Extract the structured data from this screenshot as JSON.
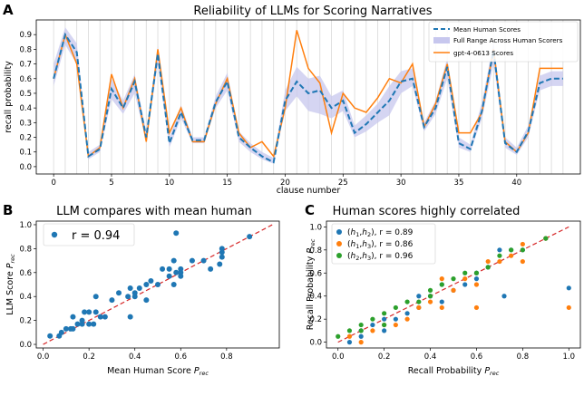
{
  "colors": {
    "human": "#1f77b4",
    "gpt": "#ff7f0e",
    "band": "#c7c7ee",
    "green": "#2ca02c",
    "diag": "#d62728"
  },
  "chart_data": [
    {
      "panel": "A",
      "type": "line",
      "title": "Reliability of LLMs for Scoring Narratives",
      "xlabel": "clause number",
      "ylabel": "recall probability",
      "xlim": [
        -1.5,
        45.5
      ],
      "ylim": [
        -0.05,
        1.0
      ],
      "xticks": [
        0,
        5,
        10,
        15,
        20,
        25,
        30,
        35,
        40
      ],
      "yticks": [
        0.0,
        0.1,
        0.2,
        0.3,
        0.4,
        0.5,
        0.6,
        0.7,
        0.8,
        0.9
      ],
      "x": [
        0,
        1,
        2,
        3,
        4,
        5,
        6,
        7,
        8,
        9,
        10,
        11,
        12,
        13,
        14,
        15,
        16,
        17,
        18,
        19,
        20,
        21,
        22,
        23,
        24,
        25,
        26,
        27,
        28,
        29,
        30,
        31,
        32,
        33,
        34,
        35,
        36,
        37,
        38,
        39,
        40,
        41,
        42,
        43,
        44
      ],
      "series": [
        {
          "name": "Mean Human Scores",
          "style": "dashed",
          "values": [
            0.6,
            0.9,
            0.78,
            0.07,
            0.12,
            0.53,
            0.4,
            0.58,
            0.2,
            0.77,
            0.16,
            0.37,
            0.18,
            0.18,
            0.44,
            0.58,
            0.2,
            0.13,
            0.07,
            0.03,
            0.45,
            0.58,
            0.5,
            0.52,
            0.4,
            0.45,
            0.23,
            0.29,
            0.37,
            0.45,
            0.58,
            0.6,
            0.27,
            0.4,
            0.68,
            0.16,
            0.12,
            0.38,
            0.79,
            0.16,
            0.1,
            0.24,
            0.57,
            0.6,
            0.6
          ]
        },
        {
          "name": "Full Range Across Human Scorers",
          "style": "band",
          "lower": [
            0.55,
            0.83,
            0.7,
            0.05,
            0.1,
            0.46,
            0.36,
            0.5,
            0.17,
            0.7,
            0.13,
            0.33,
            0.16,
            0.16,
            0.4,
            0.52,
            0.17,
            0.1,
            0.05,
            0.02,
            0.38,
            0.48,
            0.38,
            0.36,
            0.33,
            0.38,
            0.2,
            0.24,
            0.3,
            0.35,
            0.5,
            0.55,
            0.24,
            0.36,
            0.6,
            0.13,
            0.1,
            0.33,
            0.7,
            0.13,
            0.08,
            0.2,
            0.52,
            0.55,
            0.55
          ],
          "upper": [
            0.7,
            0.95,
            0.84,
            0.1,
            0.15,
            0.6,
            0.45,
            0.63,
            0.24,
            0.82,
            0.2,
            0.42,
            0.2,
            0.2,
            0.48,
            0.64,
            0.24,
            0.16,
            0.1,
            0.06,
            0.52,
            0.68,
            0.6,
            0.62,
            0.48,
            0.52,
            0.28,
            0.35,
            0.43,
            0.55,
            0.65,
            0.67,
            0.3,
            0.45,
            0.74,
            0.2,
            0.15,
            0.44,
            0.85,
            0.2,
            0.13,
            0.28,
            0.62,
            0.65,
            0.65
          ]
        },
        {
          "name": "gpt-4-0613 Scores",
          "style": "solid",
          "values": [
            0.6,
            0.9,
            0.7,
            0.07,
            0.13,
            0.63,
            0.4,
            0.6,
            0.17,
            0.8,
            0.23,
            0.4,
            0.17,
            0.17,
            0.43,
            0.6,
            0.23,
            0.13,
            0.17,
            0.07,
            0.4,
            0.93,
            0.67,
            0.57,
            0.23,
            0.5,
            0.4,
            0.37,
            0.47,
            0.6,
            0.57,
            0.7,
            0.27,
            0.43,
            0.7,
            0.23,
            0.23,
            0.37,
            0.8,
            0.17,
            0.1,
            0.23,
            0.67,
            0.67,
            0.67
          ]
        }
      ]
    },
    {
      "panel": "B",
      "type": "scatter",
      "title": "LLM compares with mean human",
      "xlabel": "Mean Human Score",
      "ylabel": "LLM Score",
      "subscript": "rec",
      "xlim": [
        -0.03,
        1.03
      ],
      "ylim": [
        -0.03,
        1.03
      ],
      "xticks": [
        0.0,
        0.2,
        0.4,
        0.6,
        0.8
      ],
      "yticks": [
        0.0,
        0.2,
        0.4,
        0.6,
        0.8,
        1.0
      ],
      "legend": "r = 0.94",
      "points": [
        [
          0.03,
          0.07
        ],
        [
          0.07,
          0.07
        ],
        [
          0.08,
          0.1
        ],
        [
          0.1,
          0.13
        ],
        [
          0.12,
          0.13
        ],
        [
          0.13,
          0.23
        ],
        [
          0.13,
          0.13
        ],
        [
          0.15,
          0.17
        ],
        [
          0.17,
          0.17
        ],
        [
          0.17,
          0.2
        ],
        [
          0.18,
          0.27
        ],
        [
          0.2,
          0.17
        ],
        [
          0.2,
          0.27
        ],
        [
          0.22,
          0.17
        ],
        [
          0.23,
          0.27
        ],
        [
          0.23,
          0.4
        ],
        [
          0.25,
          0.23
        ],
        [
          0.27,
          0.23
        ],
        [
          0.3,
          0.37
        ],
        [
          0.33,
          0.43
        ],
        [
          0.37,
          0.4
        ],
        [
          0.38,
          0.47
        ],
        [
          0.38,
          0.23
        ],
        [
          0.4,
          0.43
        ],
        [
          0.4,
          0.4
        ],
        [
          0.42,
          0.47
        ],
        [
          0.45,
          0.5
        ],
        [
          0.45,
          0.37
        ],
        [
          0.47,
          0.53
        ],
        [
          0.5,
          0.5
        ],
        [
          0.52,
          0.63
        ],
        [
          0.55,
          0.63
        ],
        [
          0.55,
          0.57
        ],
        [
          0.57,
          0.5
        ],
        [
          0.57,
          0.7
        ],
        [
          0.58,
          0.93
        ],
        [
          0.58,
          0.6
        ],
        [
          0.6,
          0.63
        ],
        [
          0.6,
          0.57
        ],
        [
          0.6,
          0.6
        ],
        [
          0.65,
          0.7
        ],
        [
          0.7,
          0.7
        ],
        [
          0.73,
          0.63
        ],
        [
          0.77,
          0.67
        ],
        [
          0.78,
          0.8
        ],
        [
          0.78,
          0.77
        ],
        [
          0.78,
          0.73
        ],
        [
          0.9,
          0.9
        ]
      ]
    },
    {
      "panel": "C",
      "type": "scatter",
      "title": "Human scores highly correlated",
      "xlabel": "Recall Probability",
      "ylabel": "Recall Probability",
      "subscript": "rec",
      "xlim": [
        -0.05,
        1.05
      ],
      "ylim": [
        -0.05,
        1.05
      ],
      "xticks": [
        0.0,
        0.2,
        0.4,
        0.6,
        0.8,
        1.0
      ],
      "yticks": [
        0.0,
        0.2,
        0.4,
        0.6,
        0.8,
        1.0
      ],
      "series": [
        {
          "name": "(h1,h2)",
          "legend_r": "r = 0.89",
          "points": [
            [
              0.05,
              0.0
            ],
            [
              0.1,
              0.05
            ],
            [
              0.1,
              0.1
            ],
            [
              0.15,
              0.15
            ],
            [
              0.2,
              0.1
            ],
            [
              0.2,
              0.2
            ],
            [
              0.25,
              0.2
            ],
            [
              0.3,
              0.25
            ],
            [
              0.35,
              0.3
            ],
            [
              0.35,
              0.4
            ],
            [
              0.4,
              0.4
            ],
            [
              0.45,
              0.35
            ],
            [
              0.45,
              0.5
            ],
            [
              0.5,
              0.45
            ],
            [
              0.55,
              0.5
            ],
            [
              0.6,
              0.55
            ],
            [
              0.6,
              0.6
            ],
            [
              0.65,
              0.65
            ],
            [
              0.7,
              0.8
            ],
            [
              0.72,
              0.4
            ],
            [
              0.75,
              0.8
            ],
            [
              0.8,
              0.8
            ],
            [
              0.9,
              0.9
            ],
            [
              1.0,
              0.47
            ]
          ]
        },
        {
          "name": "(h1,h3)",
          "legend_r": "r = 0.86",
          "points": [
            [
              0.05,
              0.05
            ],
            [
              0.1,
              0.0
            ],
            [
              0.15,
              0.1
            ],
            [
              0.2,
              0.15
            ],
            [
              0.25,
              0.15
            ],
            [
              0.3,
              0.2
            ],
            [
              0.35,
              0.3
            ],
            [
              0.4,
              0.35
            ],
            [
              0.45,
              0.3
            ],
            [
              0.45,
              0.55
            ],
            [
              0.5,
              0.45
            ],
            [
              0.55,
              0.55
            ],
            [
              0.6,
              0.3
            ],
            [
              0.6,
              0.5
            ],
            [
              0.65,
              0.7
            ],
            [
              0.7,
              0.7
            ],
            [
              0.75,
              0.75
            ],
            [
              0.8,
              0.85
            ],
            [
              0.8,
              0.7
            ],
            [
              0.9,
              0.9
            ],
            [
              1.0,
              0.3
            ]
          ]
        },
        {
          "name": "(h2,h3)",
          "legend_r": "r = 0.96",
          "points": [
            [
              0.0,
              0.05
            ],
            [
              0.05,
              0.1
            ],
            [
              0.1,
              0.1
            ],
            [
              0.1,
              0.15
            ],
            [
              0.15,
              0.2
            ],
            [
              0.2,
              0.15
            ],
            [
              0.2,
              0.25
            ],
            [
              0.25,
              0.3
            ],
            [
              0.3,
              0.35
            ],
            [
              0.35,
              0.35
            ],
            [
              0.4,
              0.4
            ],
            [
              0.4,
              0.45
            ],
            [
              0.45,
              0.5
            ],
            [
              0.5,
              0.55
            ],
            [
              0.55,
              0.6
            ],
            [
              0.6,
              0.6
            ],
            [
              0.65,
              0.65
            ],
            [
              0.7,
              0.75
            ],
            [
              0.75,
              0.8
            ],
            [
              0.8,
              0.8
            ],
            [
              0.9,
              0.9
            ]
          ]
        }
      ]
    }
  ],
  "panel_labels": [
    "A",
    "B",
    "C"
  ]
}
